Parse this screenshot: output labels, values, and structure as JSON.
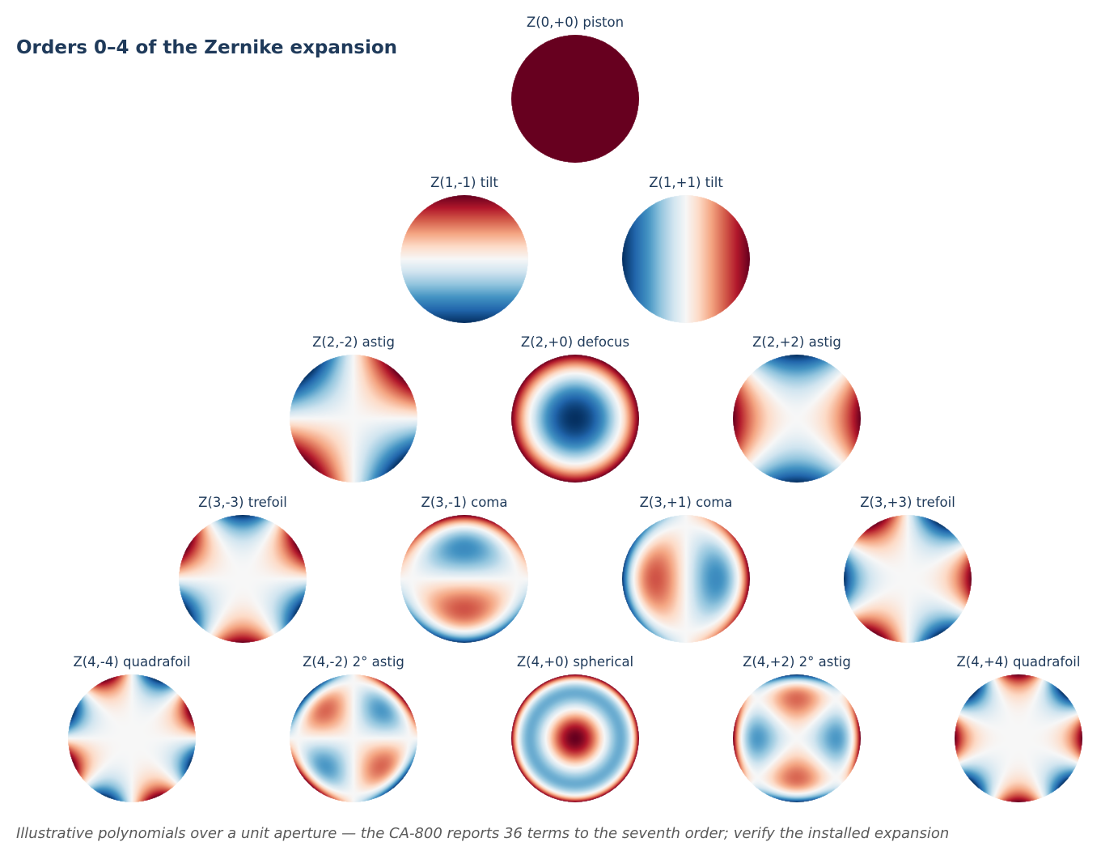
{
  "header": {
    "title": "Orders 0–4 of the Zernike expansion"
  },
  "footer": {
    "caption": "Illustrative polynomials over a unit aperture — the CA-800 reports 36 terms to the seventh order; verify the installed expansion"
  },
  "colormap": {
    "name": "RdBu",
    "negative": "#053061",
    "zero": "#f7f7f7",
    "positive": "#67001f"
  },
  "orders": [
    {
      "n": 0,
      "terms": [
        {
          "n": 0,
          "m": 0,
          "label": "Z(0,+0) piston"
        }
      ]
    },
    {
      "n": 1,
      "terms": [
        {
          "n": 1,
          "m": -1,
          "label": "Z(1,-1) tilt"
        },
        {
          "n": 1,
          "m": 1,
          "label": "Z(1,+1) tilt"
        }
      ]
    },
    {
      "n": 2,
      "terms": [
        {
          "n": 2,
          "m": -2,
          "label": "Z(2,-2) astig"
        },
        {
          "n": 2,
          "m": 0,
          "label": "Z(2,+0) defocus"
        },
        {
          "n": 2,
          "m": 2,
          "label": "Z(2,+2) astig"
        }
      ]
    },
    {
      "n": 3,
      "terms": [
        {
          "n": 3,
          "m": -3,
          "label": "Z(3,-3) trefoil"
        },
        {
          "n": 3,
          "m": -1,
          "label": "Z(3,-1) coma"
        },
        {
          "n": 3,
          "m": 1,
          "label": "Z(3,+1) coma"
        },
        {
          "n": 3,
          "m": 3,
          "label": "Z(3,+3) trefoil"
        }
      ]
    },
    {
      "n": 4,
      "terms": [
        {
          "n": 4,
          "m": -4,
          "label": "Z(4,-4) quadrafoil"
        },
        {
          "n": 4,
          "m": -2,
          "label": "Z(4,-2) 2° astig"
        },
        {
          "n": 4,
          "m": 0,
          "label": "Z(4,+0) spherical"
        },
        {
          "n": 4,
          "m": 2,
          "label": "Z(4,+2) 2° astig"
        },
        {
          "n": 4,
          "m": 4,
          "label": "Z(4,+4) quadrafoil"
        }
      ]
    }
  ]
}
